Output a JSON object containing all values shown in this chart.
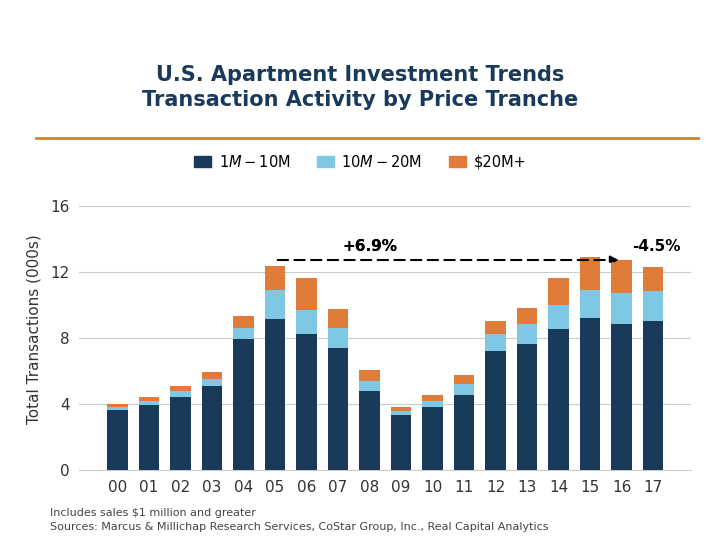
{
  "title": "U.S. Apartment Investment Trends\nTransaction Activity by Price Tranche",
  "ylabel": "Total Transactions (000s)",
  "years": [
    "00",
    "01",
    "02",
    "03",
    "04",
    "05",
    "06",
    "07",
    "08",
    "09",
    "10",
    "11",
    "12",
    "13",
    "14",
    "15",
    "16",
    "17"
  ],
  "s1m_10m": [
    3.6,
    3.9,
    4.4,
    5.1,
    7.9,
    9.1,
    8.2,
    7.4,
    4.8,
    3.3,
    3.8,
    4.5,
    7.2,
    7.6,
    8.5,
    9.2,
    8.8,
    9.0
  ],
  "s10m_20m": [
    0.2,
    0.25,
    0.35,
    0.4,
    0.7,
    1.8,
    1.5,
    1.2,
    0.6,
    0.25,
    0.35,
    0.7,
    1.0,
    1.2,
    1.5,
    1.7,
    1.9,
    1.8
  ],
  "s20m_plus": [
    0.2,
    0.25,
    0.3,
    0.45,
    0.7,
    1.45,
    1.9,
    1.15,
    0.65,
    0.25,
    0.35,
    0.55,
    0.8,
    1.0,
    1.6,
    2.0,
    2.0,
    1.5
  ],
  "color_dark": "#1a3a5c",
  "color_light_blue": "#7ec8e3",
  "color_orange": "#e07b39",
  "ylim": [
    0,
    17
  ],
  "yticks": [
    0,
    4,
    8,
    12,
    16
  ],
  "footnote1": "Includes sales $1 million and greater",
  "footnote2": "Sources: Marcus & Millichap Research Services, CoStar Group, Inc., Real Capital Analytics",
  "title_color": "#1a3a5c",
  "separator_color": "#c8862a",
  "legend_labels": [
    "$1M-$10M",
    "$10M-$20M",
    "$20M+"
  ]
}
